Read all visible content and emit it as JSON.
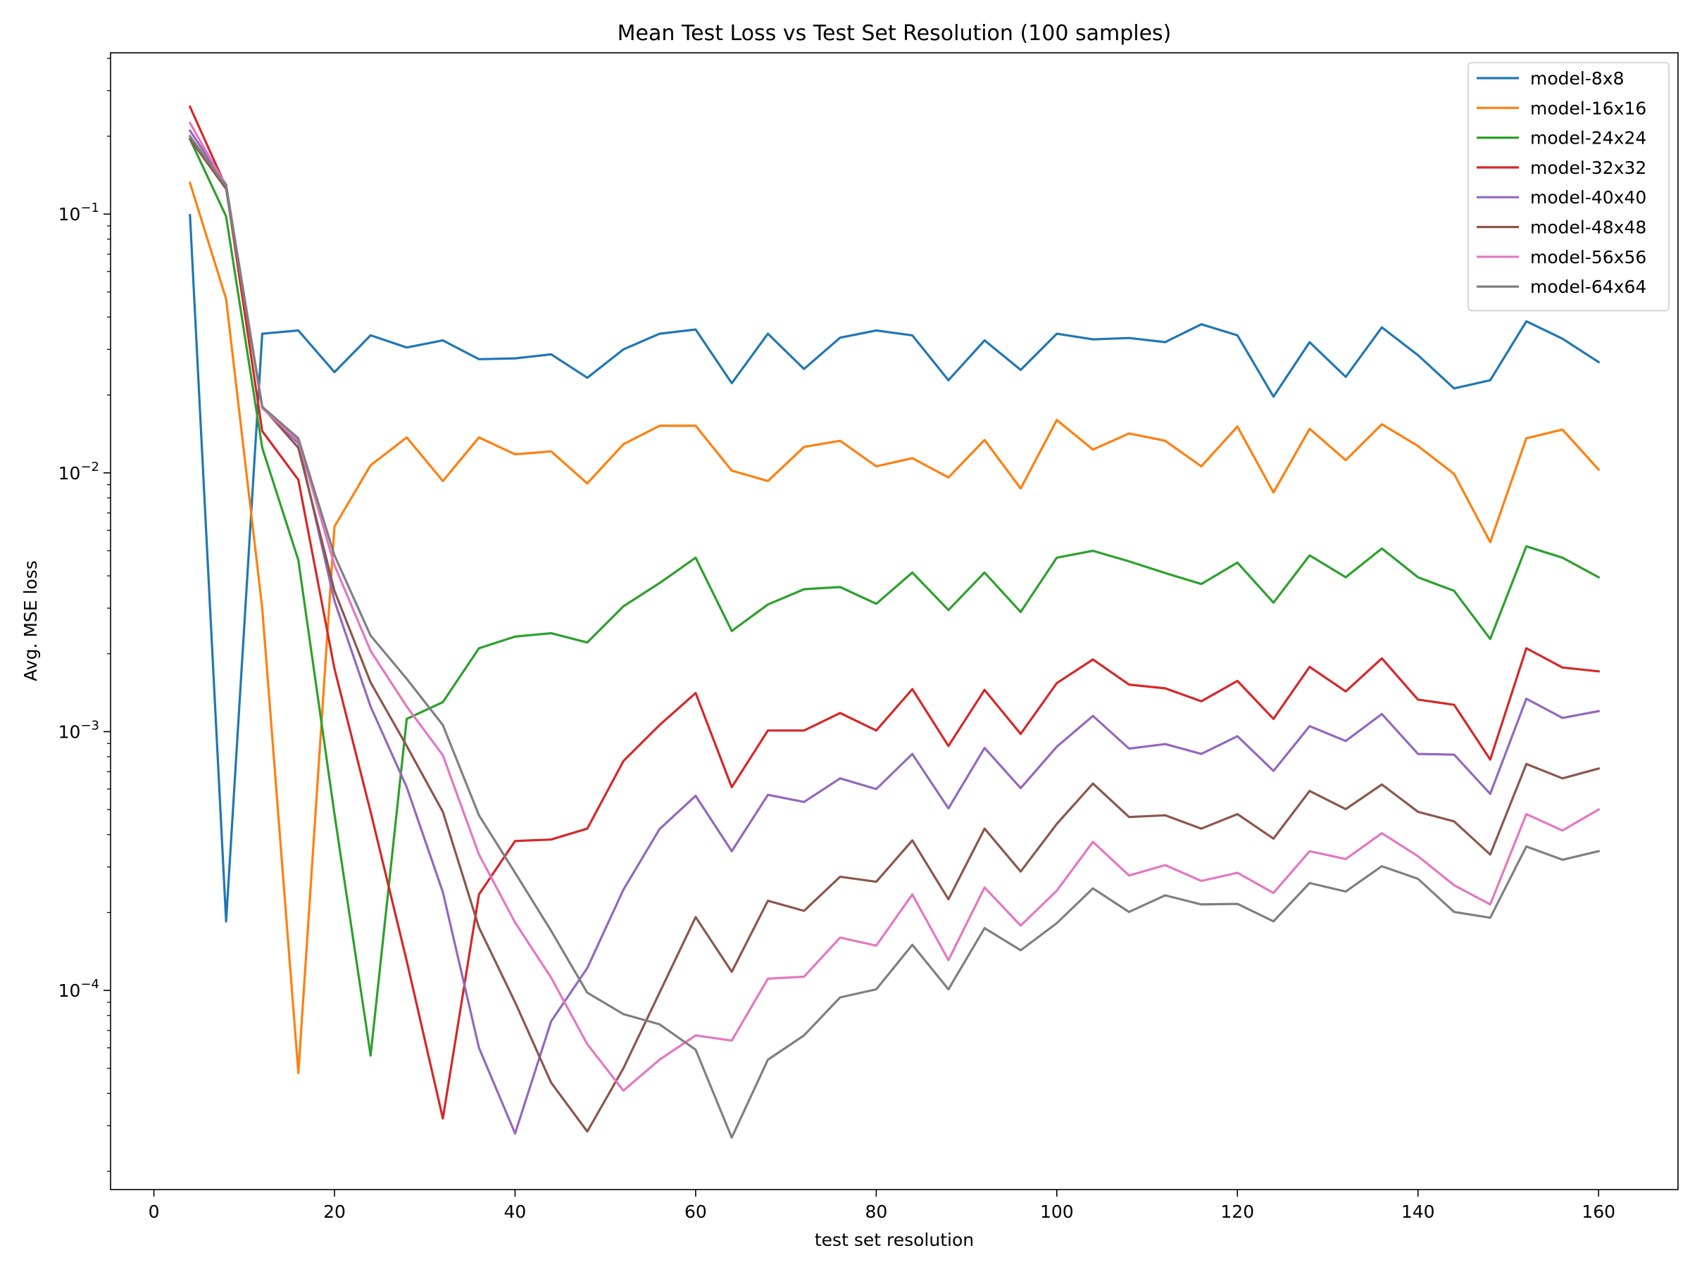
{
  "chart_data": {
    "type": "line",
    "title": "Mean Test Loss vs Test Set Resolution (100 samples)",
    "xlabel": "test set resolution",
    "ylabel": "Avg. MSE loss",
    "xlim": [
      -4.8,
      168.8
    ],
    "ylim": [
      1.7e-05,
      0.42
    ],
    "yscale": "log",
    "grid": false,
    "legend_position": "top-right",
    "x_ticks": [
      0,
      20,
      40,
      60,
      80,
      100,
      120,
      140,
      160
    ],
    "y_ticks": [
      {
        "value": 0.1,
        "base": "10",
        "exp": "−1"
      },
      {
        "value": 0.01,
        "base": "10",
        "exp": "−2"
      },
      {
        "value": 0.001,
        "base": "10",
        "exp": "−3"
      },
      {
        "value": 0.0001,
        "base": "10",
        "exp": "−4"
      }
    ],
    "x": [
      4,
      8,
      12,
      16,
      20,
      24,
      28,
      32,
      36,
      40,
      44,
      48,
      52,
      56,
      60,
      64,
      68,
      72,
      76,
      80,
      84,
      88,
      92,
      96,
      100,
      104,
      108,
      112,
      116,
      120,
      124,
      128,
      132,
      136,
      140,
      144,
      148,
      152,
      156,
      160
    ],
    "series": [
      {
        "name": "model-8x8",
        "color": "#1f77b4",
        "values": [
          0.099,
          0.000185,
          0.0345,
          0.0355,
          0.0245,
          0.034,
          0.0305,
          0.0325,
          0.0275,
          0.0277,
          0.0287,
          0.0233,
          0.03,
          0.0345,
          0.0358,
          0.0222,
          0.0345,
          0.0252,
          0.0333,
          0.0355,
          0.034,
          0.0228,
          0.0325,
          0.025,
          0.0345,
          0.0328,
          0.0332,
          0.032,
          0.0375,
          0.034,
          0.0197,
          0.032,
          0.0235,
          0.0365,
          0.0285,
          0.0212,
          0.0228,
          0.0385,
          0.033,
          0.0268
        ]
      },
      {
        "name": "model-16x16",
        "color": "#ff7f0e",
        "values": [
          0.132,
          0.047,
          0.003,
          4.8e-05,
          0.0062,
          0.0107,
          0.0137,
          0.0093,
          0.0137,
          0.0118,
          0.0121,
          0.0091,
          0.0129,
          0.0152,
          0.0152,
          0.0102,
          0.0093,
          0.0126,
          0.0133,
          0.0106,
          0.0114,
          0.0096,
          0.0134,
          0.0087,
          0.016,
          0.0123,
          0.0142,
          0.0133,
          0.0106,
          0.0151,
          0.0084,
          0.0148,
          0.0112,
          0.0154,
          0.0127,
          0.0099,
          0.0054,
          0.0136,
          0.0147,
          0.0103
        ]
      },
      {
        "name": "model-24x24",
        "color": "#2ca02c",
        "values": [
          0.195,
          0.098,
          0.0125,
          0.0046,
          0.00048,
          5.6e-05,
          0.00112,
          0.0013,
          0.0021,
          0.00233,
          0.0024,
          0.00221,
          0.00305,
          0.00375,
          0.0047,
          0.00245,
          0.0031,
          0.00355,
          0.00362,
          0.00312,
          0.00412,
          0.00295,
          0.00412,
          0.0029,
          0.0047,
          0.005,
          0.00455,
          0.0041,
          0.00372,
          0.0045,
          0.00315,
          0.0048,
          0.00395,
          0.0051,
          0.00395,
          0.0035,
          0.00228,
          0.0052,
          0.0047,
          0.00395
        ]
      },
      {
        "name": "model-32x32",
        "color": "#d62728",
        "values": [
          0.26,
          0.127,
          0.0145,
          0.0094,
          0.00175,
          0.00049,
          0.00013,
          3.2e-05,
          0.000235,
          0.000378,
          0.000383,
          0.000422,
          0.00077,
          0.00106,
          0.00141,
          0.00061,
          0.00101,
          0.00101,
          0.00118,
          0.00101,
          0.00146,
          0.00088,
          0.00145,
          0.00098,
          0.00154,
          0.0019,
          0.00152,
          0.00147,
          0.00131,
          0.00157,
          0.00112,
          0.00178,
          0.00143,
          0.00192,
          0.00133,
          0.00127,
          0.00078,
          0.0021,
          0.00177,
          0.00171
        ]
      },
      {
        "name": "model-40x40",
        "color": "#9467bd",
        "values": [
          0.21,
          0.13,
          0.018,
          0.013,
          0.0032,
          0.00125,
          0.00061,
          0.00024,
          6e-05,
          2.8e-05,
          7.6e-05,
          0.000122,
          0.000245,
          0.00042,
          0.000565,
          0.000345,
          0.00057,
          0.000535,
          0.00066,
          0.0006,
          0.00082,
          0.000505,
          0.000865,
          0.000605,
          0.000875,
          0.00115,
          0.00086,
          0.000895,
          0.00082,
          0.00096,
          0.000705,
          0.00105,
          0.00092,
          0.00117,
          0.00082,
          0.000815,
          0.000575,
          0.00134,
          0.00113,
          0.0012
        ]
      },
      {
        "name": "model-48x48",
        "color": "#8c564b",
        "values": [
          0.195,
          0.125,
          0.018,
          0.0125,
          0.0035,
          0.00155,
          0.00088,
          0.00049,
          0.000175,
          9e-05,
          4.4e-05,
          2.85e-05,
          5e-05,
          9.8e-05,
          0.000192,
          0.000118,
          0.000222,
          0.000203,
          0.000275,
          0.000263,
          0.00038,
          0.000225,
          0.000422,
          0.000288,
          0.00044,
          0.00063,
          0.000468,
          0.000475,
          0.000422,
          0.00048,
          0.000386,
          0.00059,
          0.000502,
          0.000625,
          0.00049,
          0.00045,
          0.000335,
          0.00075,
          0.00066,
          0.00072
        ]
      },
      {
        "name": "model-56x56",
        "color": "#e377c2",
        "values": [
          0.225,
          0.128,
          0.0178,
          0.0133,
          0.0044,
          0.00205,
          0.00125,
          0.00081,
          0.000335,
          0.000183,
          0.000112,
          6.2e-05,
          4.1e-05,
          5.4e-05,
          6.7e-05,
          6.4e-05,
          0.000111,
          0.000113,
          0.00016,
          0.000149,
          0.000235,
          0.000131,
          0.00025,
          0.000178,
          0.000243,
          0.000375,
          0.000278,
          0.000305,
          0.000265,
          0.000285,
          0.000238,
          0.000345,
          0.000322,
          0.000405,
          0.00033,
          0.000255,
          0.000215,
          0.00048,
          0.000415,
          0.0005
        ]
      },
      {
        "name": "model-64x64",
        "color": "#7f7f7f",
        "values": [
          0.2,
          0.128,
          0.018,
          0.0136,
          0.0048,
          0.00235,
          0.0016,
          0.00106,
          0.000475,
          0.000285,
          0.00017,
          9.8e-05,
          8.1e-05,
          7.4e-05,
          5.9e-05,
          2.7e-05,
          5.4e-05,
          6.7e-05,
          9.4e-05,
          0.000101,
          0.00015,
          0.000101,
          0.000174,
          0.000143,
          0.000182,
          0.000248,
          0.000201,
          0.000233,
          0.000215,
          0.000216,
          0.000185,
          0.00026,
          0.000241,
          0.000302,
          0.00027,
          0.000201,
          0.000191,
          0.00036,
          0.00032,
          0.000345
        ]
      }
    ]
  }
}
